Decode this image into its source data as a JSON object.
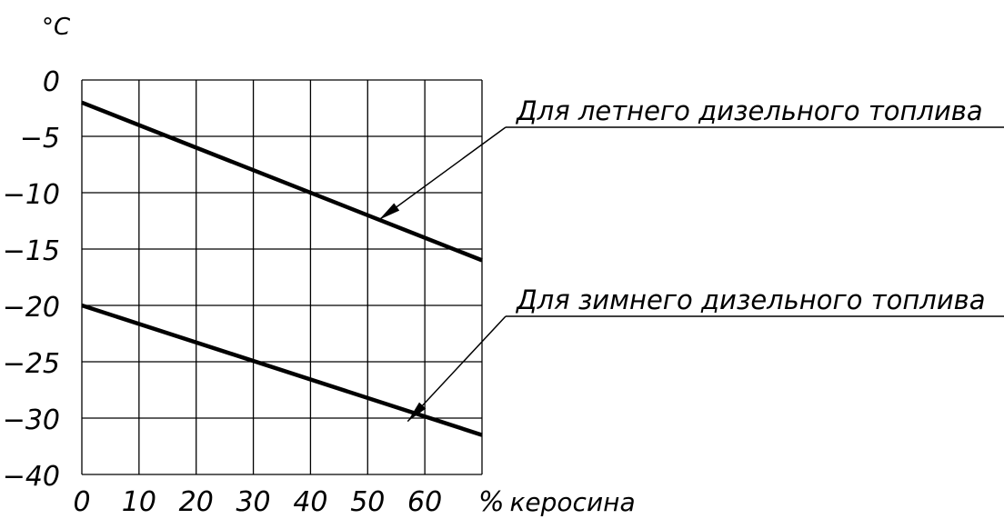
{
  "chart_data": {
    "type": "line",
    "title": "",
    "ylabel": "°C",
    "xlabel": "% керосина",
    "x_ticks": [
      "0",
      "10",
      "20",
      "30",
      "40",
      "50",
      "60",
      "%"
    ],
    "x_tick_values": [
      0,
      10,
      20,
      30,
      40,
      50,
      60,
      70
    ],
    "y_ticks": [
      "0",
      "−5",
      "−10",
      "−15",
      "−20",
      "−25",
      "−30",
      "−40"
    ],
    "xlim": [
      0,
      70
    ],
    "grid": true,
    "series": [
      {
        "name": "Для летнего дизельного топлива",
        "x": [
          0,
          70
        ],
        "y": [
          -2,
          -16
        ]
      },
      {
        "name": "Для зимнего дизельного топлива",
        "x": [
          0,
          70
        ],
        "y": [
          -20,
          -33
        ]
      }
    ],
    "annotation_targets_x": [
      52,
      57
    ]
  }
}
